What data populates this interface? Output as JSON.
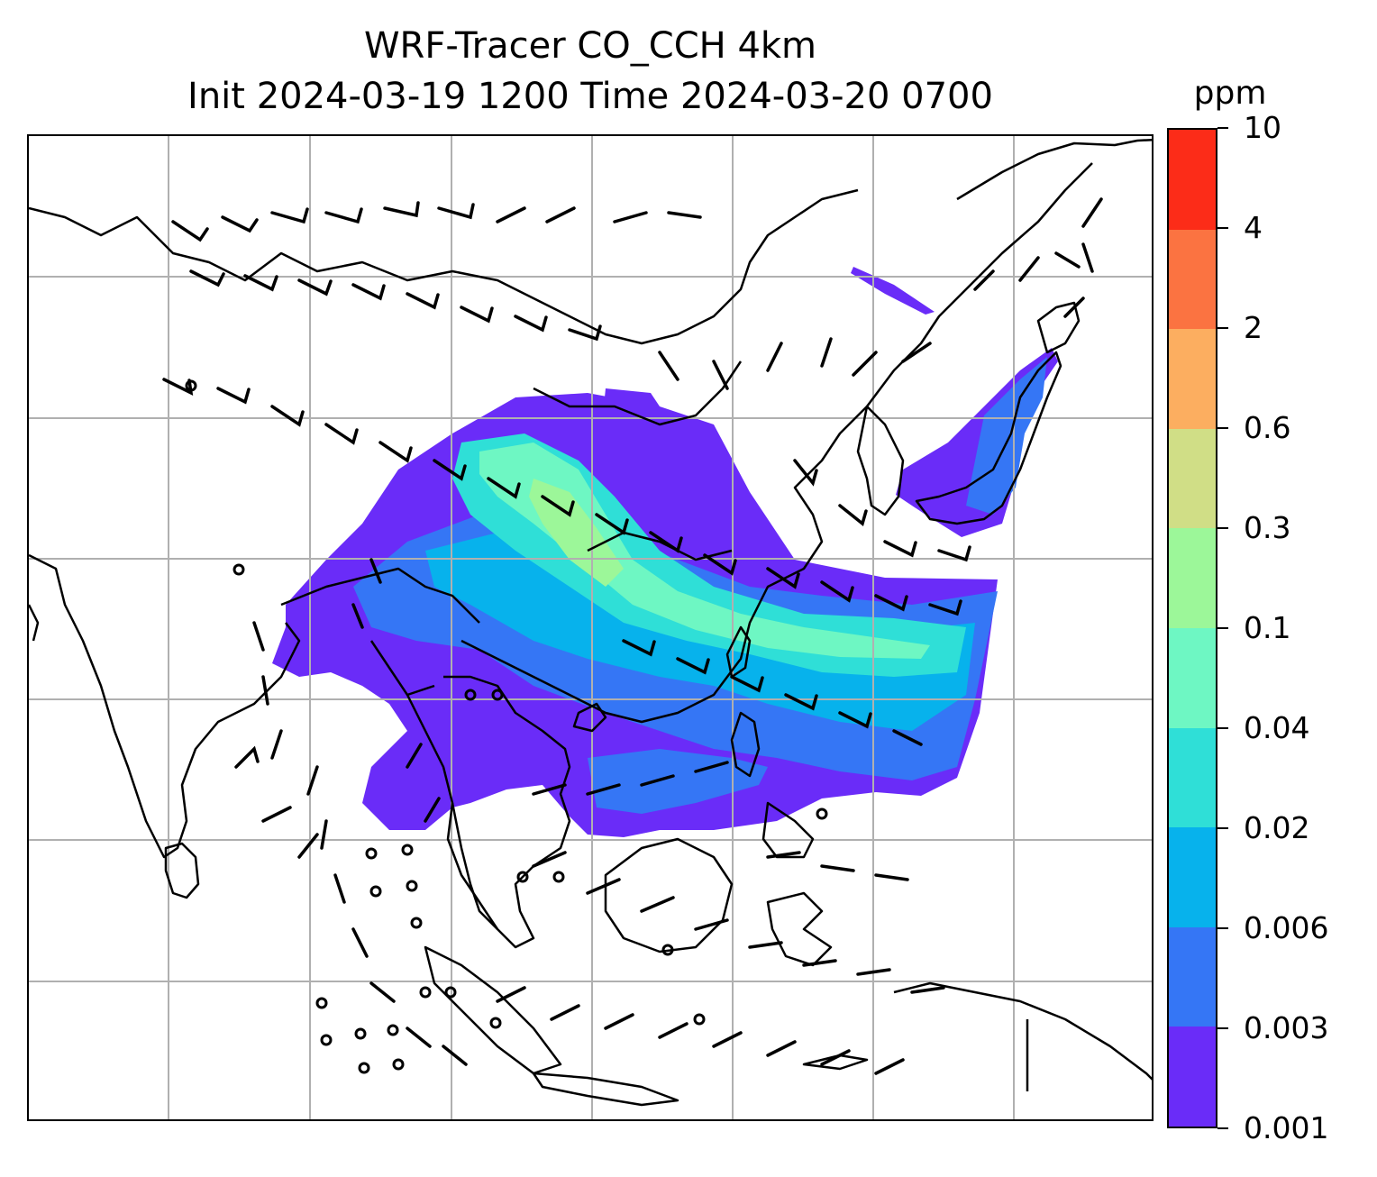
{
  "title": {
    "line1": "WRF-Tracer CO_CCH 4km",
    "line2": "Init 2024-03-19 1200 Time 2024-03-20 0700"
  },
  "colorbar": {
    "unit": "ppm",
    "levels": [
      "0.001",
      "0.003",
      "0.006",
      "0.02",
      "0.04",
      "0.1",
      "0.3",
      "0.6",
      "2",
      "4",
      "10"
    ],
    "colors": [
      "#6a2cf8",
      "#3576f5",
      "#07b2ec",
      "#2fdfd7",
      "#6ef7c3",
      "#9cf799",
      "#d0de86",
      "#fcae60",
      "#fb7341",
      "#fc2c18"
    ]
  },
  "map": {
    "background": "#ffffff",
    "coastline_color": "#000000",
    "gridline_color": "#b0b0b0",
    "wind_barb_color": "#000000"
  }
}
